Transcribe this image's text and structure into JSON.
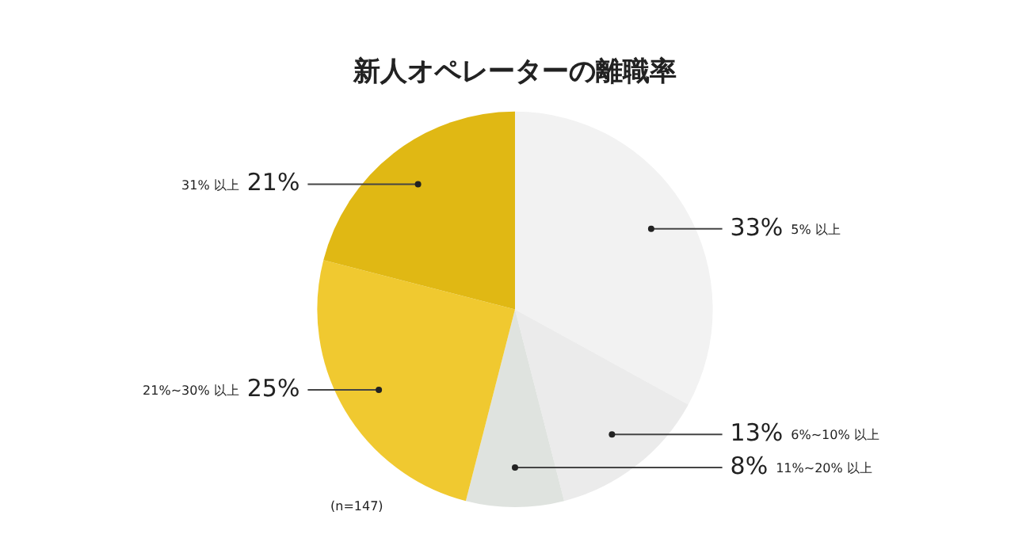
{
  "chart_data": {
    "type": "pie",
    "title": "新人オペレーターの離職率",
    "categories": [
      "5% 以上",
      "6%~10% 以上",
      "11%~20% 以上",
      "21%~30% 以上",
      "31% 以上"
    ],
    "values": [
      33,
      13,
      8,
      25,
      21
    ],
    "value_labels": [
      "33%",
      "13%",
      "8%",
      "25%",
      "21%"
    ],
    "colors": [
      "#f2f2f2",
      "#ebebeb",
      "#dfe3df",
      "#f0c930",
      "#e0b814"
    ],
    "legend": false,
    "annotations": [
      "(n=147)"
    ]
  }
}
